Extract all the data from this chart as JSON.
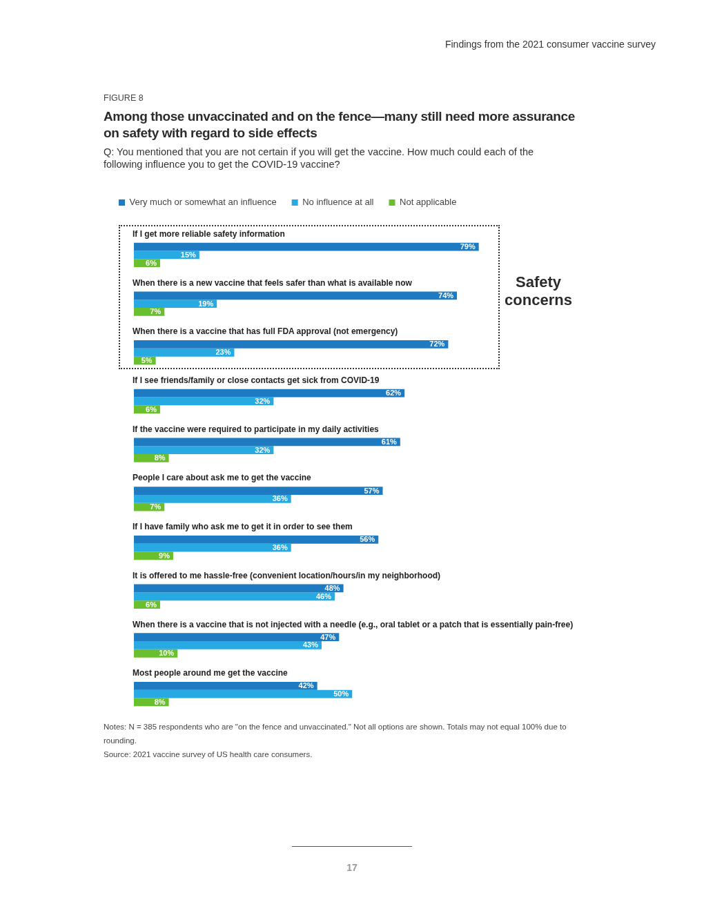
{
  "chart_data": {
    "type": "bar",
    "orientation": "horizontal",
    "legend": "top left",
    "title": "Among those unvaccinated and on the fence—many still need more assurance on safety with regard to side effects",
    "subtitle": "Q: You mentioned that you are not certain if you will get the vaccine. How much could each of the following influence you to get the COVID-19 vaccine?",
    "categories": [
      "If I get more reliable safety information",
      "When there is a new vaccine that feels safer than what is available now",
      "When there is a vaccine that has full FDA approval (not emergency)",
      "If I see friends/family or close contacts get sick from COVID-19",
      "If the vaccine were required to participate in my daily activities",
      "People I care about ask me to get the vaccine",
      "If I have family who ask me to get it in order to see them",
      "It is offered to me hassle-free (convenient location/hours/in my neighborhood)",
      "When there is a vaccine that is not injected with a needle (e.g., oral tablet or a patch that is essentially pain-free)",
      "Most people around me get the vaccine"
    ],
    "series": [
      {
        "name": "Very much or somewhat an influence",
        "color": "#1f7bc1",
        "values": [
          79,
          74,
          72,
          62,
          61,
          57,
          56,
          48,
          47,
          42
        ],
        "value_labels": [
          "79%",
          "74%",
          "72%",
          "62%",
          "61%",
          "57%",
          "56%",
          "48%",
          "47%",
          "42%"
        ]
      },
      {
        "name": "No influence at all",
        "color": "#27aae1",
        "values": [
          15,
          19,
          23,
          32,
          32,
          36,
          36,
          46,
          43,
          50
        ],
        "value_labels": [
          "15%",
          "19%",
          "23%",
          "32%",
          "32%",
          "36%",
          "36%",
          "46%",
          "43%",
          "50%"
        ]
      },
      {
        "name": "Not applicable",
        "color": "#6abf2e",
        "values": [
          6,
          7,
          5,
          6,
          8,
          7,
          9,
          6,
          10,
          8
        ],
        "value_labels": [
          "6%",
          "7%",
          "5%",
          "6%",
          "8%",
          "7%",
          "9%",
          "6%",
          "10%",
          "8%"
        ]
      }
    ],
    "annotations": [
      "Findings from the 2021 consumer vaccine survey",
      "FIGURE 8",
      "Safety concerns",
      "Notes: N = 385 respondents who are \"on the fence and unvaccinated.\" Not all options are shown. Totals may not equal 100% due to rounding.",
      "Source: 2021 vaccine survey of US health care consumers.",
      "17"
    ]
  }
}
